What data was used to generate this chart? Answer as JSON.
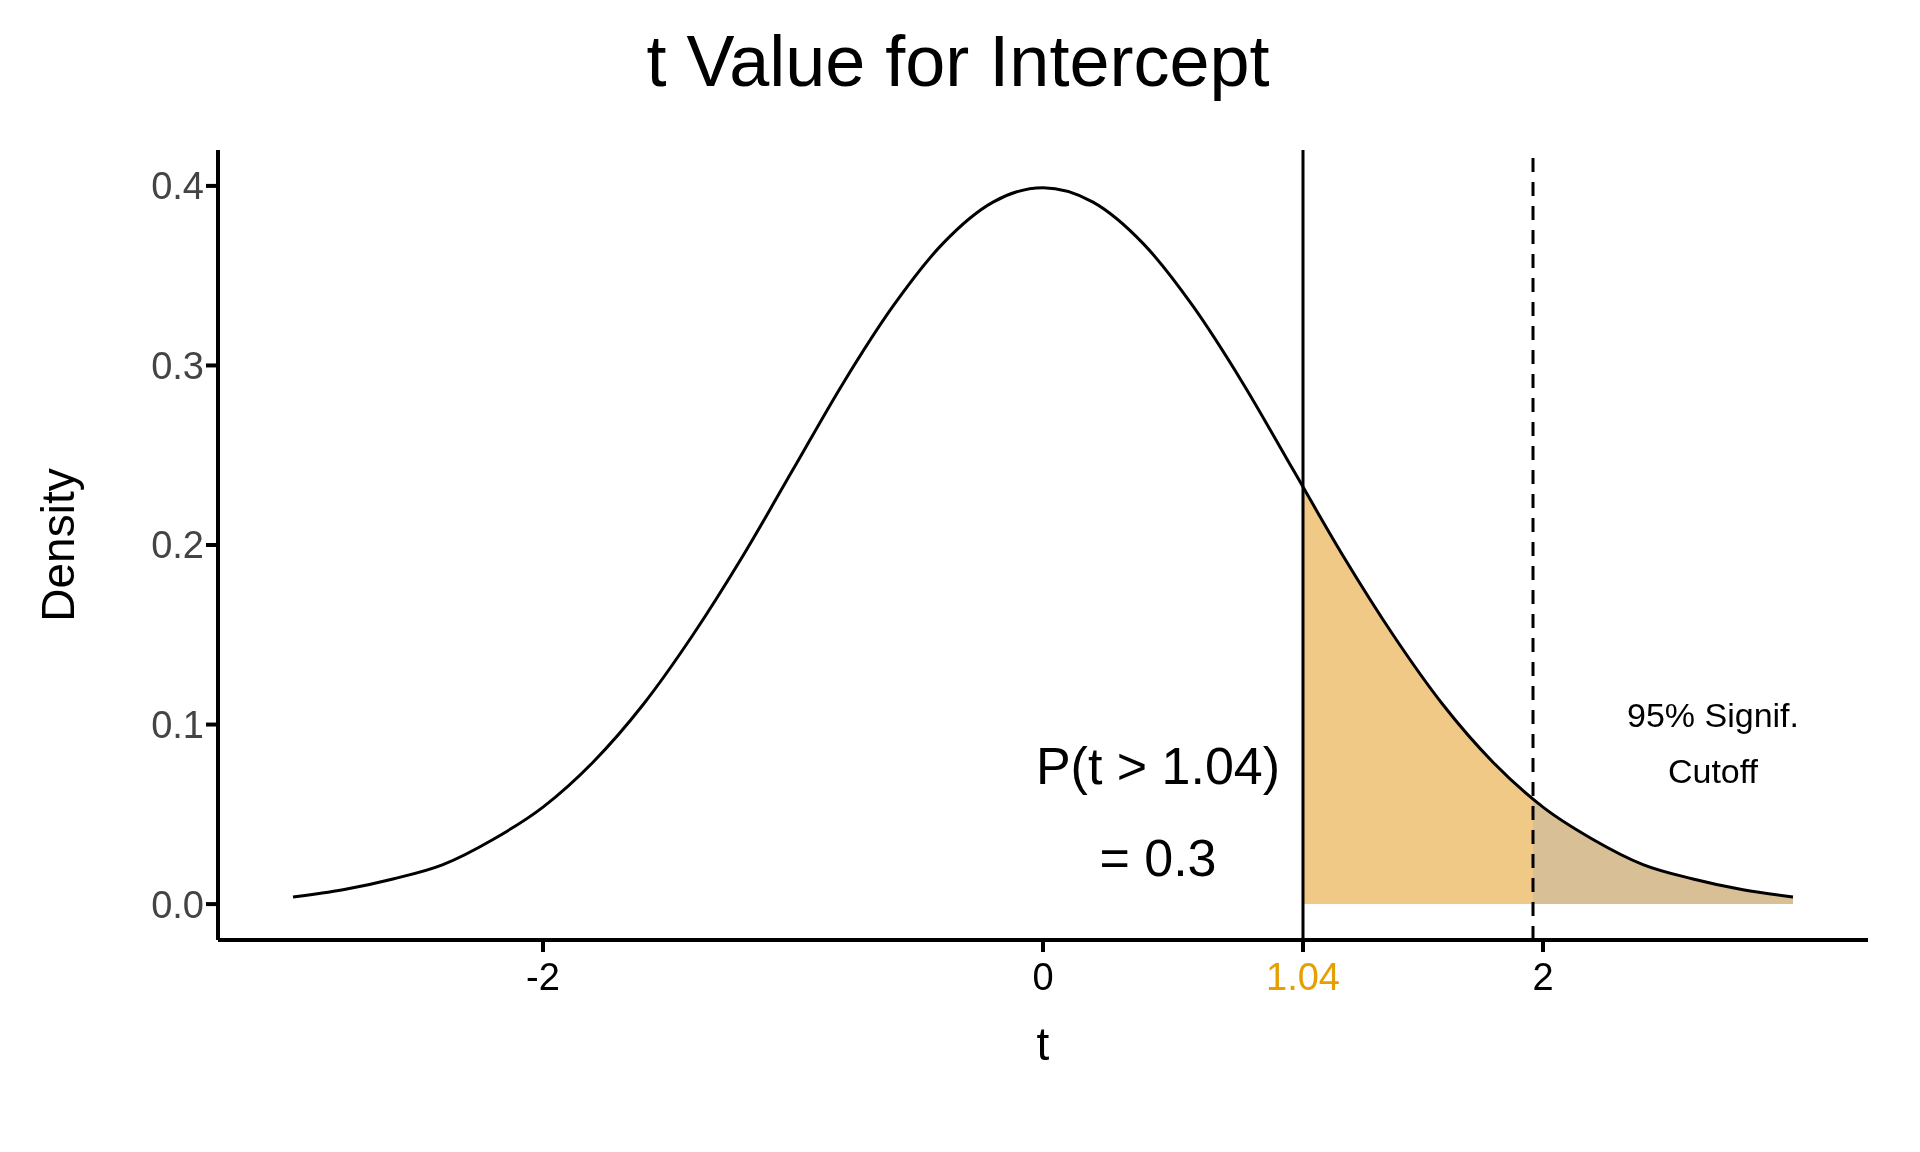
{
  "chart_data": {
    "type": "line",
    "title": "t Value for Intercept",
    "xlabel": "t",
    "ylabel": "Density",
    "xlim": [
      -3.3,
      3.3
    ],
    "ylim": [
      -0.02,
      0.42
    ],
    "xticks": [
      -2,
      0,
      1.04,
      2
    ],
    "yticks": [
      {
        "value": 0,
        "label": "0.0"
      },
      {
        "value": 0.1,
        "label": "0.1"
      },
      {
        "value": 0.2,
        "label": "0.2"
      },
      {
        "value": 0.3,
        "label": "0.3"
      },
      {
        "value": 0.4,
        "label": "0.4"
      }
    ],
    "grid": false,
    "legend": false,
    "series": [
      {
        "color": "#000000",
        "x": [
          -3,
          -2.8,
          -2.6,
          -2.4,
          -2.2,
          -2,
          -1.8,
          -1.6,
          -1.4,
          -1.2,
          -1,
          -0.8,
          -0.6,
          -0.4,
          -0.2,
          0,
          0.2,
          0.4,
          0.6,
          0.8,
          1,
          1.2,
          1.4,
          1.6,
          1.8,
          2,
          2.2,
          2.4,
          2.6,
          2.8,
          3
        ],
        "values": [
          0.004,
          0.008,
          0.014,
          0.022,
          0.036,
          0.054,
          0.079,
          0.111,
          0.15,
          0.194,
          0.242,
          0.29,
          0.333,
          0.368,
          0.391,
          0.399,
          0.391,
          0.368,
          0.333,
          0.29,
          0.242,
          0.194,
          0.15,
          0.111,
          0.079,
          0.054,
          0.036,
          0.022,
          0.014,
          0.008,
          0.004
        ]
      },
      {
        "type": "area",
        "color": "#f0c987",
        "x": [
          1.04,
          1.2,
          1.4,
          1.6,
          1.8,
          1.96
        ],
        "values": [
          0.232,
          0.194,
          0.15,
          0.111,
          0.079,
          0.058
        ]
      },
      {
        "type": "area",
        "color": "#d8bf96",
        "x": [
          1.96,
          2.2,
          2.4,
          2.6,
          2.8,
          3
        ],
        "values": [
          0.058,
          0.036,
          0.022,
          0.014,
          0.008,
          0.004
        ]
      }
    ],
    "ref_lines": [
      {
        "axis": "x",
        "value": 1.04,
        "color": "#000000",
        "line_style": "solid"
      },
      {
        "axis": "x",
        "value": 1.96,
        "label": "95% Signif. Cutoff",
        "color": "#000000",
        "line_style": "dashed"
      }
    ],
    "annotations": [
      "P(t > 1.04)",
      "= 0.3"
    ]
  }
}
